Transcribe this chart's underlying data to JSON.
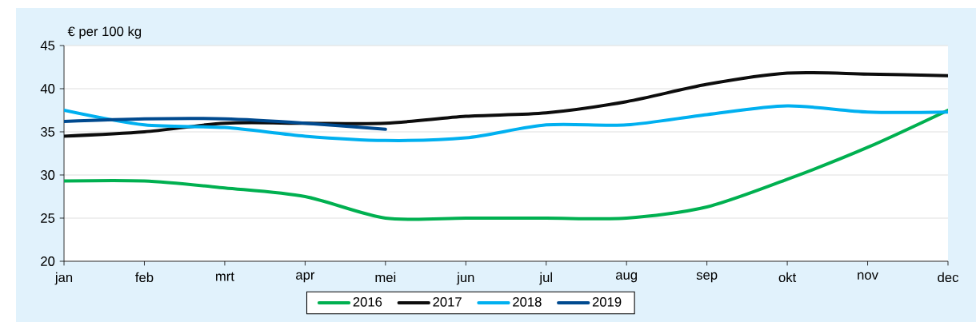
{
  "chart_data": {
    "type": "line",
    "ylabel": "€ per 100 kg",
    "categories": [
      "jan",
      "feb",
      "mrt",
      "apr",
      "mei",
      "jun",
      "jul",
      "aug",
      "sep",
      "okt",
      "nov",
      "dec"
    ],
    "series": [
      {
        "name": "2016",
        "color": "#00b050",
        "values": [
          29.3,
          29.3,
          28.5,
          27.5,
          25.0,
          25.0,
          25.0,
          25.0,
          26.3,
          29.5,
          33.2,
          37.5
        ]
      },
      {
        "name": "2017",
        "color": "#0d0d0d",
        "values": [
          34.5,
          35.0,
          36.0,
          36.0,
          36.0,
          36.8,
          37.2,
          38.5,
          40.5,
          41.8,
          41.7,
          41.5
        ]
      },
      {
        "name": "2018",
        "color": "#00b0f0",
        "values": [
          37.5,
          35.8,
          35.5,
          34.5,
          34.0,
          34.3,
          35.8,
          35.8,
          37.0,
          38.0,
          37.3,
          37.3
        ]
      },
      {
        "name": "2019",
        "color": "#004a8f",
        "values": [
          36.2,
          36.5,
          36.5,
          36.0,
          35.3,
          null,
          null,
          null,
          null,
          null,
          null,
          null
        ]
      }
    ],
    "ylim": [
      20,
      45
    ],
    "yticks": [
      20,
      25,
      30,
      35,
      40,
      45
    ],
    "grid": "y",
    "legend": "bottom",
    "marker": "none",
    "line_style": "solid"
  }
}
